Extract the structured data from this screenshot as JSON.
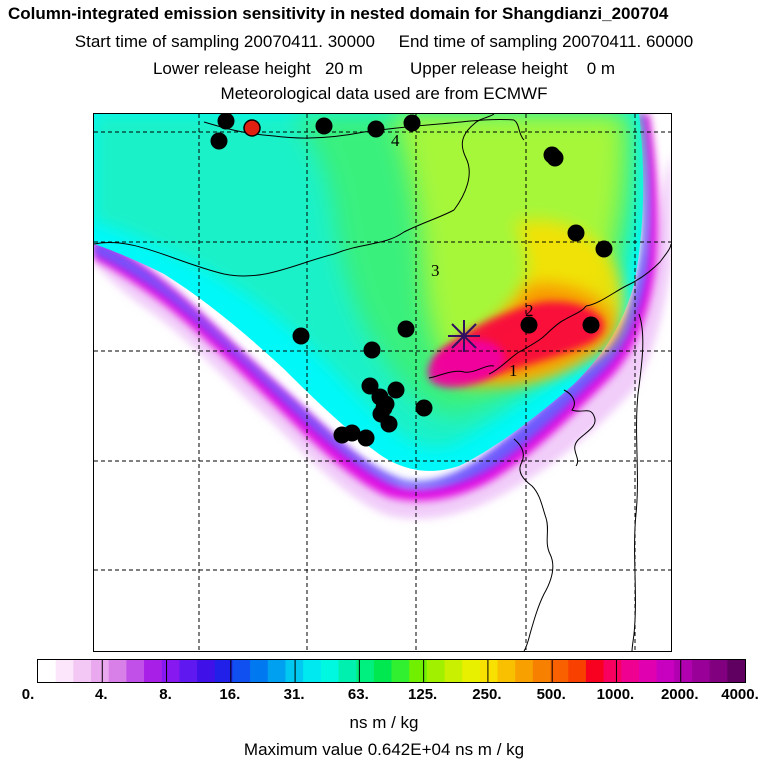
{
  "header": {
    "title": "Column-integrated emission sensitivity in nested domain for Shangdianzi_200704",
    "start_label": "Start time of sampling",
    "start_value": "20070411. 30000",
    "end_label": "End time of sampling",
    "end_value": "20070411. 60000",
    "lower_label": "Lower release height",
    "lower_value": "20 m",
    "upper_label": "Upper release height",
    "upper_value": "0 m",
    "met": "Meteorological data used are from ECMWF"
  },
  "map": {
    "labels": [
      "1",
      "2",
      "3",
      "4"
    ],
    "colors": {
      "background": "#ffffff",
      "outer": "#f0c8f8",
      "magenta": "#e000e0",
      "blue": "#6060ff",
      "cyan": "#00f8f8",
      "teal": "#20f0c0",
      "green": "#40f070",
      "yellowgreen": "#b8f830",
      "yellow": "#f8e000",
      "orange": "#f89000",
      "red": "#f80040",
      "hot": "#f000a0",
      "dot": "#000000",
      "receptor": "#e02010"
    }
  },
  "colorbar": {
    "ticks": [
      "0.",
      "4.",
      "8.",
      "16.",
      "31.",
      "63.",
      "125.",
      "250.",
      "500.",
      "1000.",
      "2000.",
      "4000."
    ],
    "colors": [
      "#ffffff",
      "#fbe6fb",
      "#f4c8f4",
      "#eaa8ee",
      "#d880e8",
      "#c050e8",
      "#a820e8",
      "#8818f0",
      "#6018f0",
      "#4010e8",
      "#2020e8",
      "#1050f0",
      "#0078f0",
      "#00a0f0",
      "#00c8f0",
      "#00e8f0",
      "#00f8e0",
      "#00f0b0",
      "#00f080",
      "#00e850",
      "#30f030",
      "#70f000",
      "#a0f000",
      "#c8f000",
      "#e8f000",
      "#f8e000",
      "#f8c000",
      "#f8a000",
      "#f88000",
      "#f86000",
      "#f84000",
      "#f80020",
      "#f80060",
      "#f00090",
      "#e000b0",
      "#c800c0",
      "#b000b0",
      "#980098",
      "#800080",
      "#600060"
    ],
    "units": "ns m / kg",
    "max_label": "Maximum value",
    "max_value": "0.642E+04 ns m / kg"
  }
}
